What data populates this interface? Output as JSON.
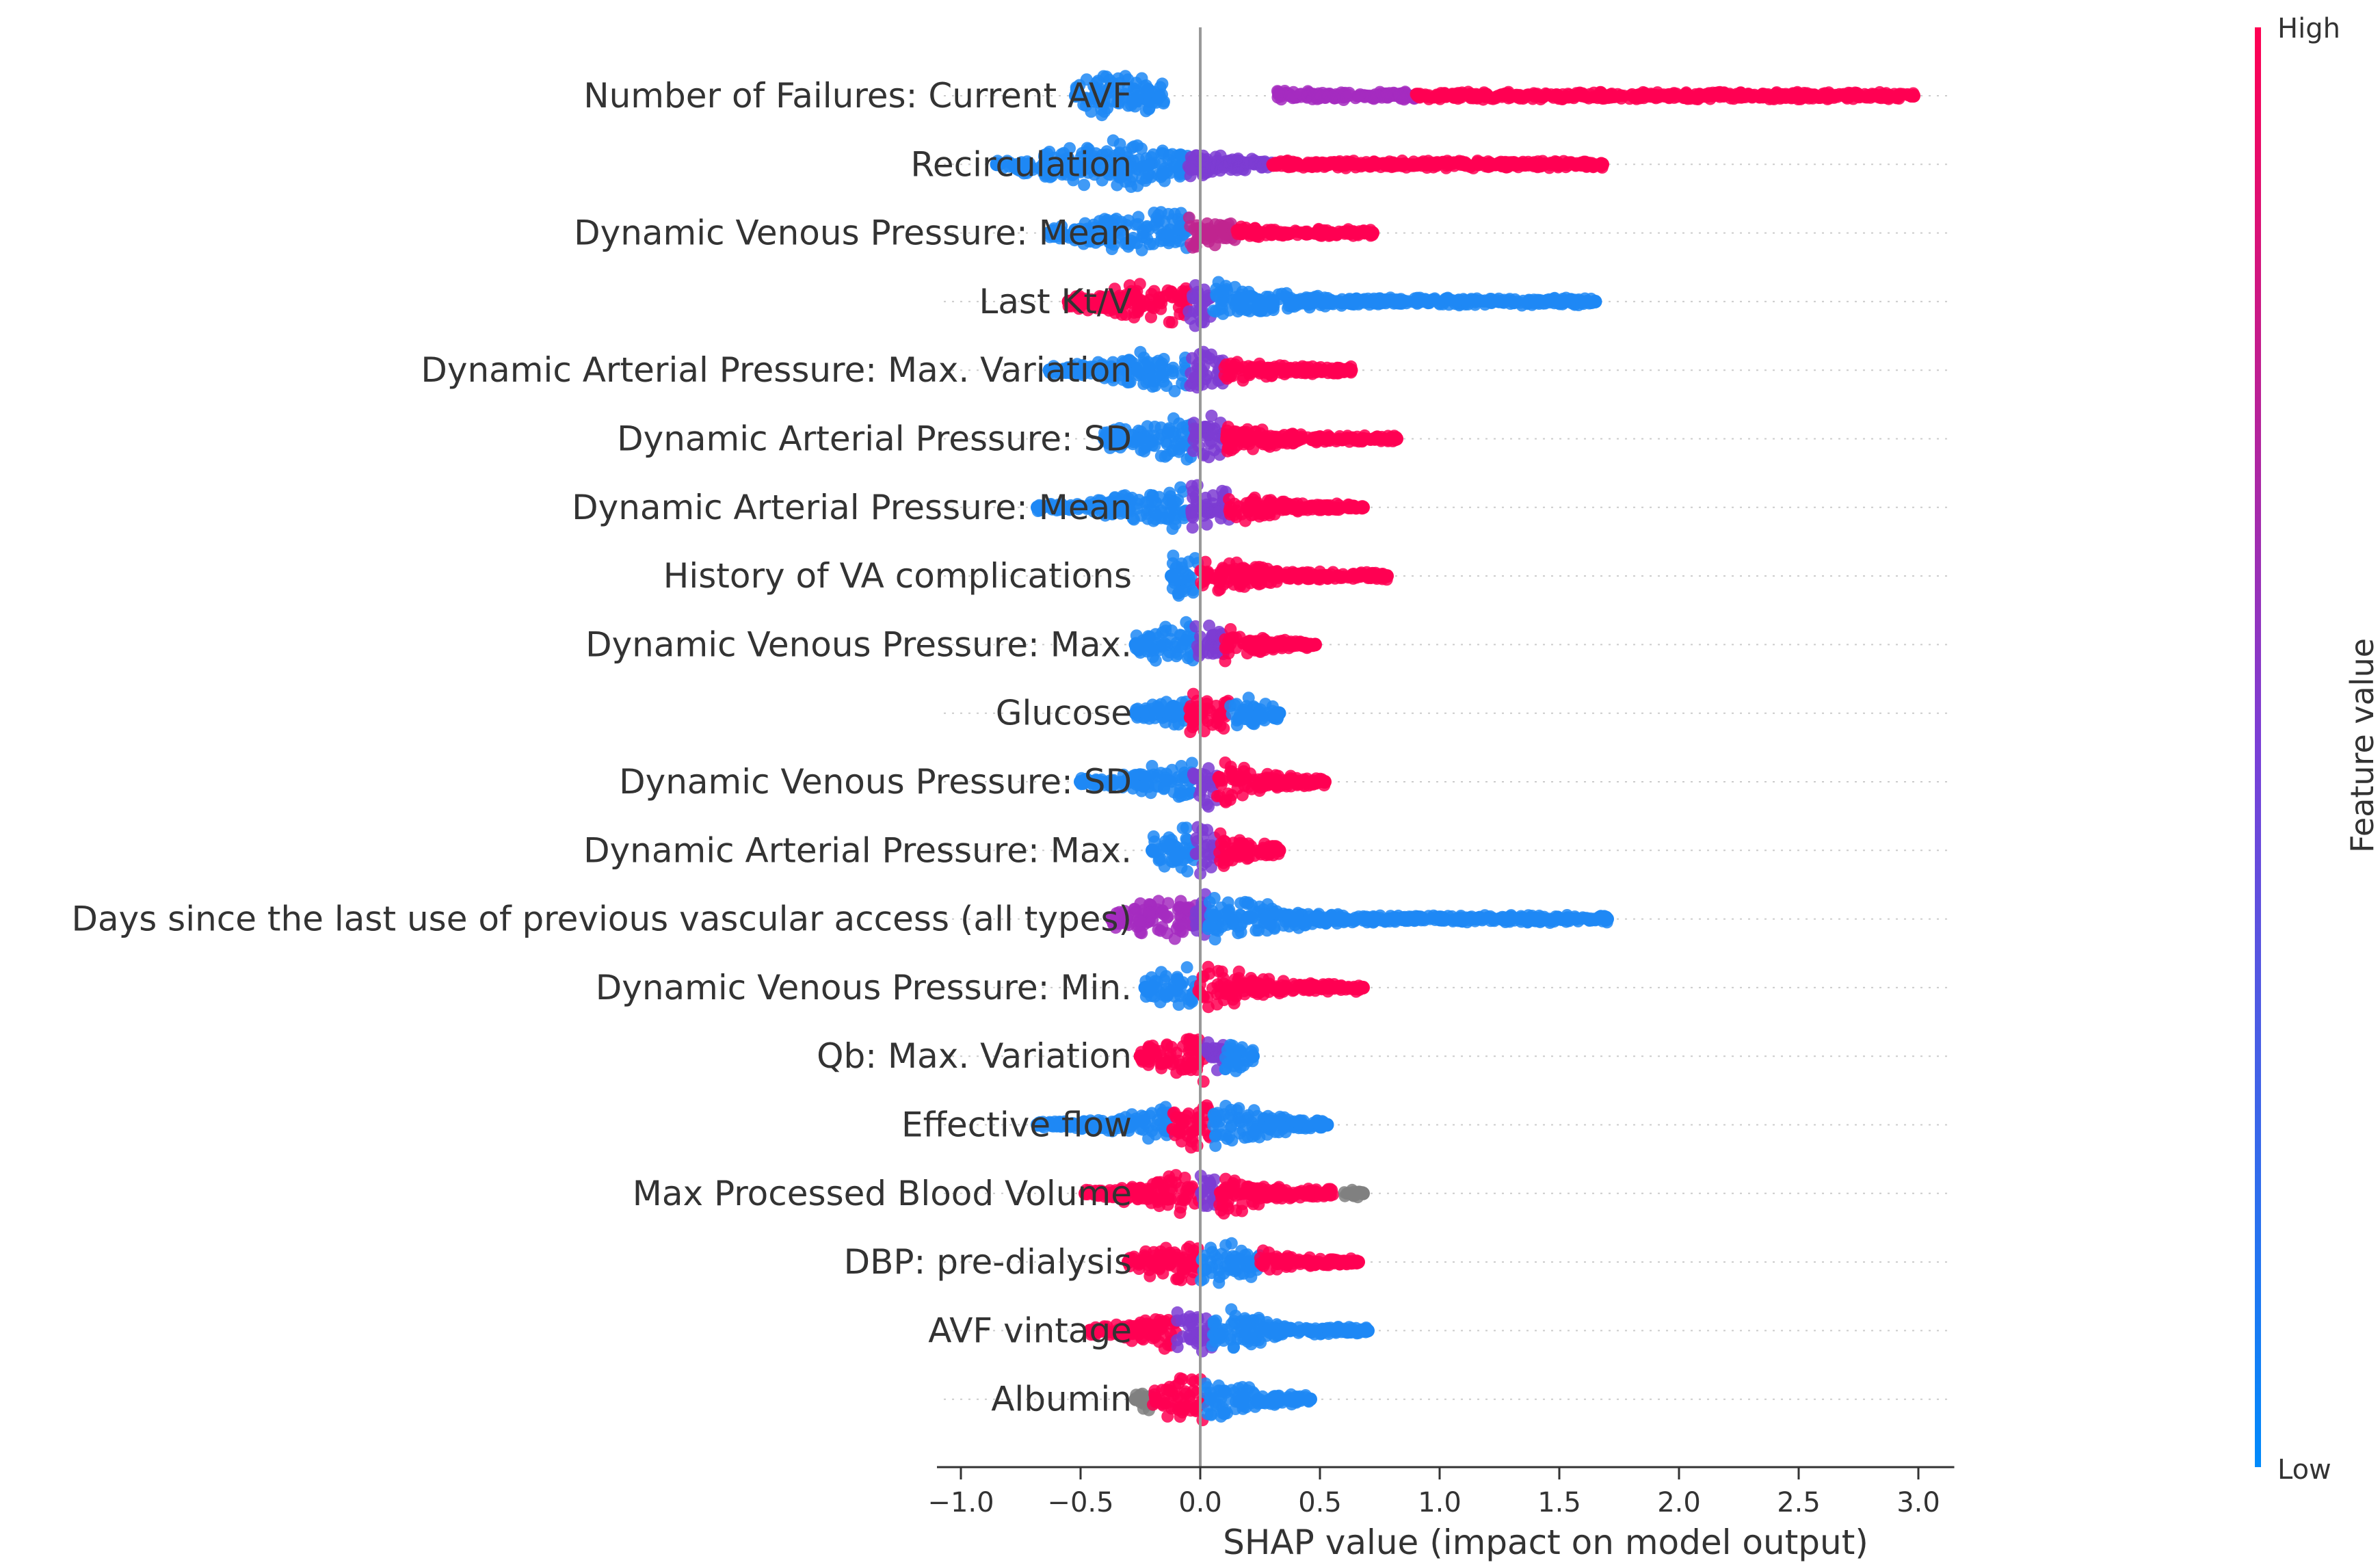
{
  "chart_data": {
    "type": "scatter",
    "subtype": "shap-beeswarm",
    "title": "",
    "xlabel": "SHAP value (impact on model output)",
    "ylabel": "",
    "xlim": [
      -1.1,
      3.15
    ],
    "x_ticks": [
      -1.0,
      -0.5,
      0.0,
      0.5,
      1.0,
      1.5,
      2.0,
      2.5,
      3.0
    ],
    "x_tick_labels": [
      "−1.0",
      "−0.5",
      "0.0",
      "0.5",
      "1.0",
      "1.5",
      "2.0",
      "2.5",
      "3.0"
    ],
    "grid": false,
    "colorbar": {
      "title": "Feature value",
      "high_label": "High",
      "low_label": "Low",
      "low_color": "#008afb",
      "high_color": "#ff0052"
    },
    "features": [
      {
        "name": "Number of Failures: Current AVF",
        "min": -0.52,
        "max": 2.98,
        "peak": -0.4,
        "low_side": "left",
        "segments": [
          {
            "from": -0.52,
            "to": -0.15,
            "color": "#1e88f5"
          },
          {
            "from": 0.32,
            "to": 0.9,
            "color": "#a52cc0"
          },
          {
            "from": 0.9,
            "to": 2.98,
            "color": "#ff0052"
          }
        ]
      },
      {
        "name": "Recirculation",
        "min": -0.85,
        "max": 1.68,
        "peak": -0.35,
        "low_side": "left",
        "segments": [
          {
            "from": -0.85,
            "to": -0.05,
            "color": "#1e88f5"
          },
          {
            "from": -0.05,
            "to": 0.3,
            "color": "#7d3cd2"
          },
          {
            "from": 0.3,
            "to": 1.68,
            "color": "#ff0052"
          }
        ]
      },
      {
        "name": "Dynamic Venous Pressure: Mean",
        "min": -0.63,
        "max": 0.72,
        "peak": -0.2,
        "low_side": "left",
        "segments": [
          {
            "from": -0.63,
            "to": -0.05,
            "color": "#1e88f5"
          },
          {
            "from": -0.05,
            "to": 0.15,
            "color": "#c0258f"
          },
          {
            "from": 0.15,
            "to": 0.72,
            "color": "#ff0052"
          }
        ]
      },
      {
        "name": "Last Kt/V",
        "min": -0.55,
        "max": 1.65,
        "peak": -0.05,
        "low_side": "right",
        "segments": [
          {
            "from": -0.55,
            "to": -0.05,
            "color": "#ff0052"
          },
          {
            "from": -0.05,
            "to": 0.05,
            "color": "#7d3cd2"
          },
          {
            "from": 0.05,
            "to": 1.65,
            "color": "#1e88f5"
          }
        ]
      },
      {
        "name": "Dynamic Arterial Pressure: Max. Variation",
        "min": -0.63,
        "max": 0.63,
        "peak": -0.1,
        "low_side": "left",
        "segments": [
          {
            "from": -0.63,
            "to": -0.05,
            "color": "#1e88f5"
          },
          {
            "from": -0.05,
            "to": 0.1,
            "color": "#7d3cd2"
          },
          {
            "from": 0.1,
            "to": 0.63,
            "color": "#ff0052"
          }
        ]
      },
      {
        "name": "Dynamic Arterial Pressure: SD",
        "min": -0.4,
        "max": 0.82,
        "peak": -0.05,
        "low_side": "left",
        "segments": [
          {
            "from": -0.4,
            "to": -0.03,
            "color": "#1e88f5"
          },
          {
            "from": -0.03,
            "to": 0.1,
            "color": "#7d3cd2"
          },
          {
            "from": 0.1,
            "to": 0.82,
            "color": "#ff0052"
          }
        ]
      },
      {
        "name": "Dynamic Arterial Pressure: Mean",
        "min": -0.68,
        "max": 0.68,
        "peak": -0.05,
        "low_side": "left",
        "segments": [
          {
            "from": -0.68,
            "to": -0.05,
            "color": "#1e88f5"
          },
          {
            "from": -0.05,
            "to": 0.12,
            "color": "#7d3cd2"
          },
          {
            "from": 0.12,
            "to": 0.68,
            "color": "#ff0052"
          }
        ]
      },
      {
        "name": "History of VA complications",
        "min": -0.12,
        "max": 0.78,
        "peak": -0.04,
        "low_side": "left",
        "segments": [
          {
            "from": -0.12,
            "to": 0.0,
            "color": "#1e88f5"
          },
          {
            "from": 0.0,
            "to": 0.78,
            "color": "#ff0052"
          }
        ]
      },
      {
        "name": "Dynamic Venous Pressure: Max.",
        "min": -0.27,
        "max": 0.48,
        "peak": -0.03,
        "low_side": "left",
        "segments": [
          {
            "from": -0.27,
            "to": -0.02,
            "color": "#1e88f5"
          },
          {
            "from": -0.02,
            "to": 0.1,
            "color": "#7d3cd2"
          },
          {
            "from": 0.1,
            "to": 0.48,
            "color": "#ff0052"
          }
        ]
      },
      {
        "name": "Glucose",
        "min": -0.27,
        "max": 0.33,
        "peak": 0.05,
        "low_side": "left",
        "segments": [
          {
            "from": -0.27,
            "to": -0.05,
            "color": "#1e88f5"
          },
          {
            "from": -0.05,
            "to": 0.12,
            "color": "#ff0052"
          },
          {
            "from": 0.12,
            "to": 0.33,
            "color": "#1e88f5"
          }
        ]
      },
      {
        "name": "Dynamic Venous Pressure: SD",
        "min": -0.5,
        "max": 0.52,
        "peak": 0.0,
        "low_side": "left",
        "segments": [
          {
            "from": -0.5,
            "to": -0.03,
            "color": "#1e88f5"
          },
          {
            "from": -0.03,
            "to": 0.07,
            "color": "#7d3cd2"
          },
          {
            "from": 0.07,
            "to": 0.52,
            "color": "#ff0052"
          }
        ]
      },
      {
        "name": "Dynamic Arterial Pressure: Max.",
        "min": -0.2,
        "max": 0.33,
        "peak": -0.03,
        "low_side": "left",
        "segments": [
          {
            "from": -0.2,
            "to": -0.02,
            "color": "#1e88f5"
          },
          {
            "from": -0.02,
            "to": 0.08,
            "color": "#7d3cd2"
          },
          {
            "from": 0.08,
            "to": 0.33,
            "color": "#ff0052"
          }
        ]
      },
      {
        "name": "Days since the last use of previous vascular access (all types)",
        "min": -0.37,
        "max": 1.7,
        "peak": 0.0,
        "low_side": "right",
        "segments": [
          {
            "from": -0.37,
            "to": -0.02,
            "color": "#a52cc0"
          },
          {
            "from": -0.02,
            "to": 0.03,
            "color": "#7d3cd2"
          },
          {
            "from": 0.03,
            "to": 1.7,
            "color": "#1e88f5"
          }
        ]
      },
      {
        "name": "Dynamic Venous Pressure: Min.",
        "min": -0.23,
        "max": 0.68,
        "peak": 0.0,
        "low_side": "left",
        "segments": [
          {
            "from": -0.23,
            "to": -0.02,
            "color": "#1e88f5"
          },
          {
            "from": -0.02,
            "to": 0.68,
            "color": "#ff0052"
          }
        ]
      },
      {
        "name": "Qb: Max. Variation",
        "min": -0.25,
        "max": 0.22,
        "peak": 0.0,
        "low_side": "right",
        "segments": [
          {
            "from": -0.25,
            "to": 0.02,
            "color": "#ff0052"
          },
          {
            "from": 0.02,
            "to": 0.1,
            "color": "#7d3cd2"
          },
          {
            "from": 0.1,
            "to": 0.22,
            "color": "#1e88f5"
          }
        ]
      },
      {
        "name": "Effective flow",
        "min": -0.68,
        "max": 0.53,
        "peak": 0.0,
        "low_side": "left",
        "segments": [
          {
            "from": -0.68,
            "to": -0.12,
            "color": "#1e88f5"
          },
          {
            "from": -0.12,
            "to": 0.05,
            "color": "#ff0052"
          },
          {
            "from": 0.05,
            "to": 0.53,
            "color": "#1e88f5"
          }
        ]
      },
      {
        "name": "Max Processed Blood Volume",
        "min": -0.48,
        "max": 0.68,
        "peak": 0.02,
        "low_side": "right",
        "segments": [
          {
            "from": -0.48,
            "to": 0.0,
            "color": "#ff0052"
          },
          {
            "from": 0.0,
            "to": 0.07,
            "color": "#7d3cd2"
          },
          {
            "from": 0.07,
            "to": 0.56,
            "color": "#ff0052"
          },
          {
            "from": 0.6,
            "to": 0.68,
            "color": "#808080"
          }
        ]
      },
      {
        "name": "DBP: pre-dialysis",
        "min": -0.3,
        "max": 0.66,
        "peak": 0.0,
        "low_side": "right",
        "segments": [
          {
            "from": -0.3,
            "to": 0.0,
            "color": "#ff0052"
          },
          {
            "from": 0.0,
            "to": 0.25,
            "color": "#1e88f5"
          },
          {
            "from": 0.25,
            "to": 0.66,
            "color": "#ff0052"
          }
        ]
      },
      {
        "name": "AVF vintage",
        "min": -0.46,
        "max": 0.7,
        "peak": 0.0,
        "low_side": "right",
        "segments": [
          {
            "from": -0.46,
            "to": -0.1,
            "color": "#ff0052"
          },
          {
            "from": -0.1,
            "to": 0.05,
            "color": "#7d3cd2"
          },
          {
            "from": 0.05,
            "to": 0.7,
            "color": "#1e88f5"
          }
        ]
      },
      {
        "name": "Albumin",
        "min": -0.27,
        "max": 0.46,
        "peak": 0.0,
        "low_side": "right",
        "segments": [
          {
            "from": -0.27,
            "to": -0.2,
            "color": "#808080"
          },
          {
            "from": -0.2,
            "to": 0.02,
            "color": "#ff0052"
          },
          {
            "from": 0.02,
            "to": 0.46,
            "color": "#1e88f5"
          }
        ]
      }
    ]
  }
}
